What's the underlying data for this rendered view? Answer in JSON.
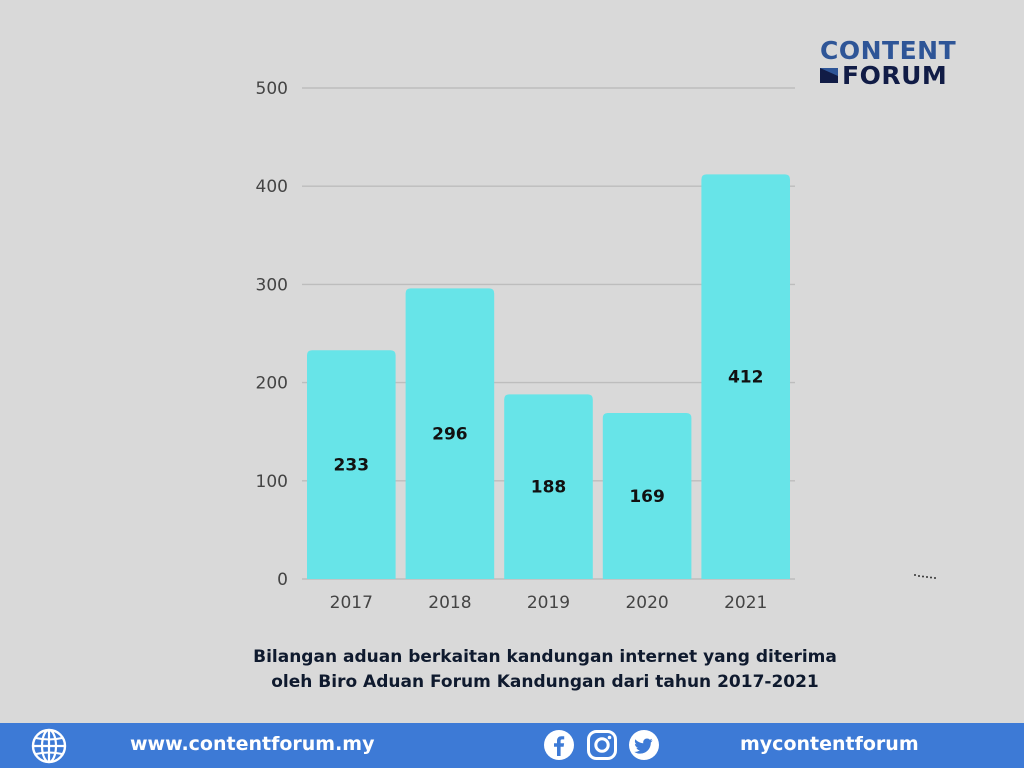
{
  "brand": {
    "line1": "CONTENT",
    "line2": "FORUM"
  },
  "chart_data": {
    "type": "bar",
    "categories": [
      "2017",
      "2018",
      "2019",
      "2020",
      "2021"
    ],
    "values": [
      233,
      296,
      188,
      169,
      412
    ],
    "ylim": [
      0,
      500
    ],
    "yticks": [
      0,
      100,
      200,
      300,
      400,
      500
    ],
    "grid": true,
    "bar_color": "#67e4e8",
    "data_labels": [
      "233",
      "296",
      "188",
      "169",
      "412"
    ]
  },
  "caption": {
    "line1": "Bilangan aduan berkaitan kandungan internet yang diterima",
    "line2": "oleh Biro Aduan Forum Kandungan dari tahun 2017-2021"
  },
  "footer": {
    "website": "www.contentforum.my",
    "handle": "mycontentforum",
    "bg_color": "#3d7ad6",
    "icons": [
      "globe-icon",
      "facebook-icon",
      "instagram-icon",
      "twitter-icon"
    ]
  }
}
